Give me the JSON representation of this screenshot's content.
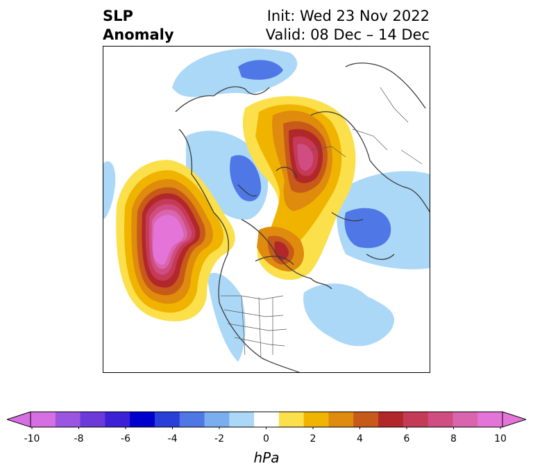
{
  "title": {
    "left": [
      "SLP",
      "Anomaly"
    ],
    "right": [
      "Init: Wed 23 Nov 2022",
      "Valid: 08 Dec – 14 Dec"
    ]
  },
  "colorbar": {
    "unit": "hPa",
    "ticks": [
      "-10",
      "-8",
      "-6",
      "-4",
      "-2",
      "0",
      "2",
      "4",
      "6",
      "8",
      "10"
    ],
    "colors": [
      "#d66fe2",
      "#9c55e0",
      "#6b3ad8",
      "#3d21d6",
      "#0000cd",
      "#2840d8",
      "#4f78e6",
      "#7aaeef",
      "#acd8f8",
      "#ffffff",
      "#fbe04c",
      "#f0b400",
      "#df8b0e",
      "#c75a19",
      "#b2282a",
      "#c43a57",
      "#cf4d80",
      "#d865ad",
      "#e474d8"
    ],
    "neutral_range": [
      -1,
      1
    ]
  },
  "map": {
    "anomaly_centers": [
      {
        "label": "strong positive",
        "level": 10,
        "color": "#e474d8"
      },
      {
        "label": "positive",
        "level": 8,
        "color": "#cf4d80"
      },
      {
        "label": "negative",
        "level": -4,
        "color": "#4f78e6"
      },
      {
        "label": "weak negative",
        "level": -2,
        "color": "#acd8f8"
      }
    ]
  }
}
